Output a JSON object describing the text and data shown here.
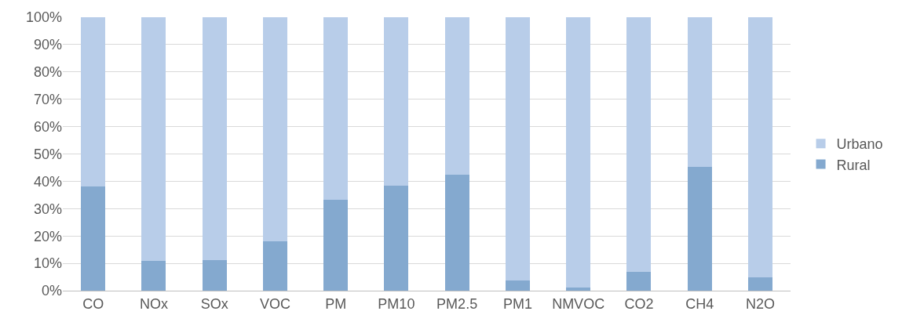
{
  "chart_data": {
    "type": "bar",
    "stacked": true,
    "categories": [
      "CO",
      "NOx",
      "SOx",
      "VOC",
      "PM",
      "PM10",
      "PM2.5",
      "PM1",
      "NMVOC",
      "CO2",
      "CH4",
      "N2O"
    ],
    "series": [
      {
        "name": "Rural",
        "color": "#84a9cf",
        "values": [
          38,
          10.9,
          11.2,
          18.1,
          33.3,
          38.5,
          42.4,
          3.7,
          1.1,
          6.9,
          45.3,
          4.9
        ]
      },
      {
        "name": "Urbano",
        "color": "#b8cde9",
        "values": [
          62,
          89.1,
          88.8,
          81.9,
          66.7,
          61.5,
          57.6,
          96.3,
          98.9,
          93.1,
          54.7,
          95.1
        ]
      }
    ],
    "ylim": [
      0,
      100
    ],
    "yticks": [
      {
        "value": 0,
        "label": "0%"
      },
      {
        "value": 10,
        "label": "10%"
      },
      {
        "value": 20,
        "label": "20%"
      },
      {
        "value": 30,
        "label": "30%"
      },
      {
        "value": 40,
        "label": "40%"
      },
      {
        "value": 50,
        "label": "50%"
      },
      {
        "value": 60,
        "label": "60%"
      },
      {
        "value": 70,
        "label": "70%"
      },
      {
        "value": 80,
        "label": "80%"
      },
      {
        "value": 90,
        "label": "90%"
      },
      {
        "value": 100,
        "label": "100%"
      }
    ],
    "grid": "y",
    "legend": "right"
  }
}
